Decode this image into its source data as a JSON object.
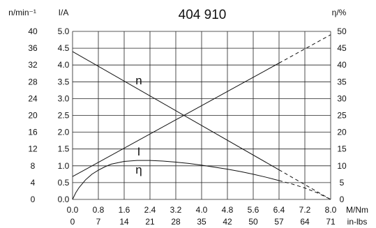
{
  "chart_data": {
    "type": "line",
    "title": "404 910",
    "axes": {
      "n": {
        "label": "n/min⁻¹",
        "ticks": [
          "40",
          "36",
          "32",
          "28",
          "24",
          "20",
          "16",
          "12",
          "8",
          "4",
          "0"
        ],
        "range": [
          0,
          40
        ]
      },
      "I": {
        "label": "I/A",
        "ticks": [
          "5.0",
          "4.5",
          "4.0",
          "3.5",
          "3.0",
          "2.5",
          "2.0",
          "1.5",
          "1.0",
          "0.5",
          "0.0"
        ],
        "range": [
          0,
          5
        ]
      },
      "eta": {
        "label": "η/%",
        "ticks": [
          "50",
          "45",
          "40",
          "35",
          "30",
          "25",
          "20",
          "15",
          "10",
          "5",
          "0"
        ],
        "range": [
          0,
          50
        ]
      },
      "M": {
        "label": "M/Nm",
        "ticks": [
          "0.0",
          "0.8",
          "1.6",
          "2.4",
          "3.2",
          "4.0",
          "4.8",
          "5.6",
          "6.4",
          "7.2",
          "8.0"
        ],
        "range": [
          0,
          8
        ]
      },
      "inlbs": {
        "label": "in-lbs",
        "ticks": [
          "0",
          "7",
          "14",
          "21",
          "28",
          "35",
          "42",
          "50",
          "57",
          "64",
          "71"
        ]
      }
    },
    "grid": true,
    "series": [
      {
        "name": "n",
        "axis": "n",
        "solid_until": 6.4,
        "points": [
          [
            0,
            35.2
          ],
          [
            8.0,
            0
          ]
        ]
      },
      {
        "name": "I",
        "axis": "I",
        "solid_until": 6.4,
        "points": [
          [
            0,
            0.68
          ],
          [
            8.0,
            4.9
          ]
        ]
      },
      {
        "name": "η",
        "axis": "eta",
        "solid_until": 6.4,
        "points": [
          [
            0,
            0
          ],
          [
            0.1,
            2.0
          ],
          [
            0.2,
            3.5
          ],
          [
            0.4,
            5.8
          ],
          [
            0.6,
            7.5
          ],
          [
            0.8,
            8.7
          ],
          [
            1.0,
            9.7
          ],
          [
            1.2,
            10.5
          ],
          [
            1.6,
            11.3
          ],
          [
            2.0,
            11.6
          ],
          [
            2.4,
            11.6
          ],
          [
            2.8,
            11.4
          ],
          [
            3.2,
            11.1
          ],
          [
            3.6,
            10.7
          ],
          [
            4.0,
            10.2
          ],
          [
            4.4,
            9.6
          ],
          [
            4.8,
            9.0
          ],
          [
            5.2,
            8.3
          ],
          [
            5.6,
            7.5
          ],
          [
            6.0,
            6.6
          ],
          [
            6.4,
            5.6
          ],
          [
            6.8,
            4.6
          ],
          [
            7.2,
            3.4
          ],
          [
            7.6,
            1.9
          ],
          [
            8.0,
            0
          ]
        ]
      }
    ]
  }
}
